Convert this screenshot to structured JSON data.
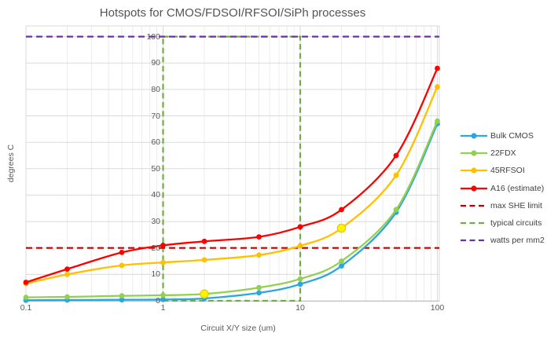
{
  "title": "Hotspots for CMOS/FDSOI/RFSOI/SiPh processes",
  "chart_data": {
    "type": "line",
    "title": "Hotspots for CMOS/FDSOI/RFSOI/SiPh processes",
    "xlabel": "Circuit X/Y size (um)",
    "ylabel": "degrees C",
    "x_scale": "log",
    "x_ticks": [
      "0.1",
      "1",
      "10",
      "100"
    ],
    "x_tick_values": [
      0.1,
      1,
      10,
      100
    ],
    "xlim": [
      0.1,
      100
    ],
    "y_ticks": [
      0,
      10,
      20,
      30,
      40,
      50,
      60,
      70,
      80,
      90,
      100
    ],
    "ylim": [
      0,
      104
    ],
    "grid": true,
    "legend_position": "right",
    "x": [
      0.1,
      0.2,
      0.5,
      1,
      2,
      5,
      10,
      20,
      50,
      100
    ],
    "series": [
      {
        "name": "Bulk CMOS",
        "color": "#2BA7E0",
        "marker": "circle",
        "values": [
          0.2,
          0.3,
          0.4,
          0.5,
          0.9,
          3.0,
          6.3,
          13.2,
          33.5,
          67
        ]
      },
      {
        "name": "22FDX",
        "color": "#92D050",
        "marker": "circle",
        "values": [
          1.3,
          1.5,
          1.9,
          2.1,
          2.6,
          5.0,
          8.3,
          15.0,
          34.5,
          68
        ]
      },
      {
        "name": "45RFSOI",
        "color": "#FFC000",
        "marker": "circle",
        "values": [
          6.5,
          10.0,
          13.4,
          14.5,
          15.5,
          17.3,
          20.8,
          27.5,
          47.5,
          81
        ]
      },
      {
        "name": "A16 (estimate)",
        "color": "#FF0000",
        "marker": "circle",
        "values": [
          7.0,
          12.0,
          18.3,
          21.0,
          22.5,
          24.2,
          28.0,
          34.5,
          55.0,
          88
        ]
      }
    ],
    "reference_lines": [
      {
        "name": "max SHE limit",
        "color": "#C00000",
        "style": "dashed",
        "shape": "hline",
        "value": 20
      },
      {
        "name": "typical circuits",
        "color": "#70AD47",
        "style": "dashed",
        "shape": "box",
        "x1": 1,
        "x2": 10,
        "y1": 0,
        "y2": 100
      },
      {
        "name": "watts per mm2",
        "color": "#7030A0",
        "style": "dashed",
        "shape": "hline",
        "value": 100
      }
    ],
    "highlight_points": [
      {
        "x": 2,
        "y": 2.6,
        "fill": "#FFF200",
        "stroke": "#E3CB00"
      },
      {
        "x": 20,
        "y": 27.5,
        "fill": "#FFF200",
        "stroke": "#E3CB00"
      }
    ],
    "colors": {
      "grid_minor": "#ECECEC",
      "grid_major": "#DADADA",
      "axis_line": "#BFBFBF",
      "plot_border": "#D9D9D9",
      "tick_text": "#595959",
      "legend_text": "#404040",
      "title_text": "#545454"
    }
  }
}
